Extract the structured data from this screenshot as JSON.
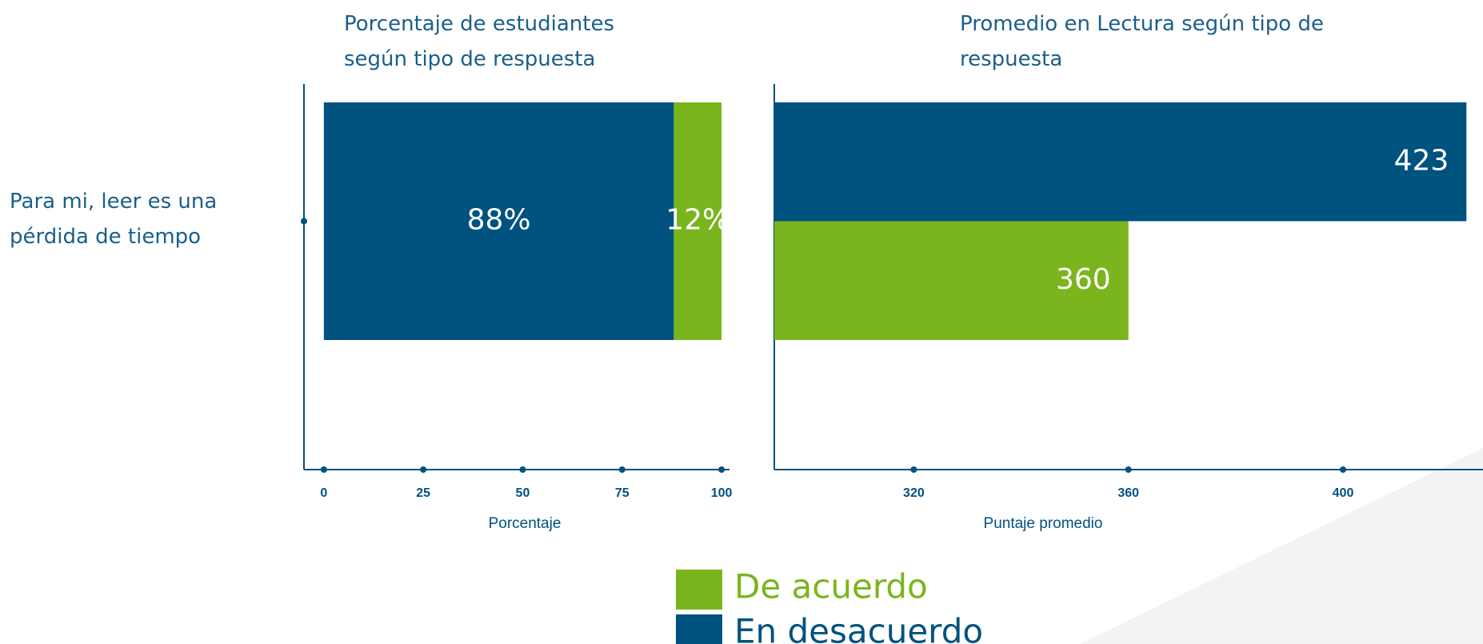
{
  "legend": {
    "items": [
      {
        "name": "De acuerdo",
        "color": "#7ab51d"
      },
      {
        "name": "En desacuerdo",
        "color": "#00527f"
      }
    ]
  },
  "chart_data": [
    {
      "type": "bar",
      "orientation": "horizontal",
      "stacked": true,
      "title": "Porcentaje de estudiantes según tipo de respuesta",
      "x_label": "Porcentaje",
      "categories": [
        "Para mi, leer es una pérdida de tiempo"
      ],
      "series": [
        {
          "color": "#00527f",
          "values": [
            88
          ],
          "value_labels": [
            "88%"
          ]
        },
        {
          "color": "#7ab51d",
          "values": [
            12
          ],
          "value_labels": [
            "12%"
          ]
        }
      ],
      "xlim": [
        -5,
        102
      ],
      "xticks": [
        0,
        25,
        50,
        75,
        100
      ]
    },
    {
      "type": "bar",
      "orientation": "horizontal",
      "stacked": false,
      "title": "Promedio en Lectura según tipo de respuesta",
      "x_label": "Puntaje promedio",
      "categories": [
        null
      ],
      "series": [
        {
          "color": "#00527f",
          "values": [
            423
          ]
        },
        {
          "color": "#7ab51d",
          "values": [
            360
          ]
        }
      ],
      "xlim": [
        294,
        424
      ],
      "xticks": [
        320,
        360,
        400
      ]
    }
  ]
}
